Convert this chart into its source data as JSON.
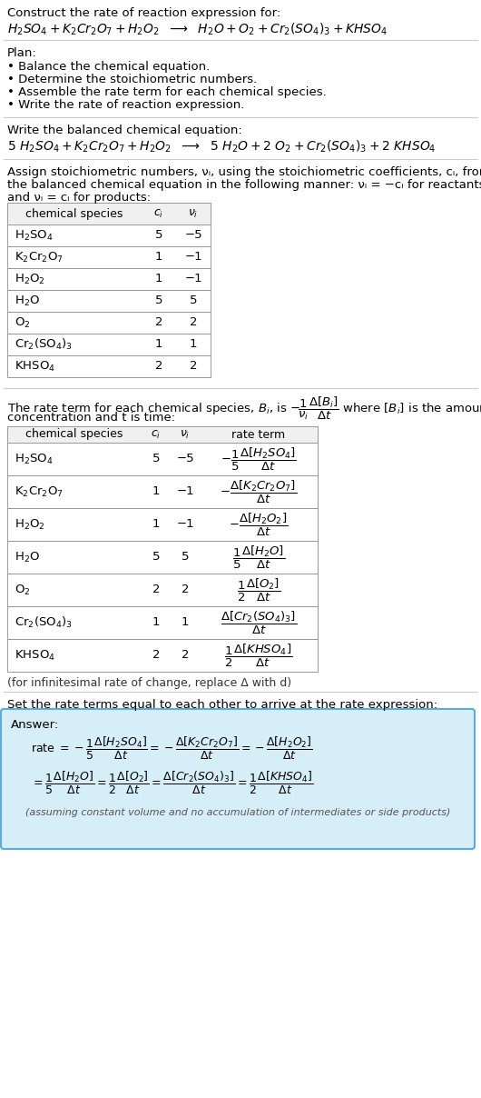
{
  "title_line1": "Construct the rate of reaction expression for:",
  "plan_header": "Plan:",
  "plan_items": [
    "• Balance the chemical equation.",
    "• Determine the stoichiometric numbers.",
    "• Assemble the rate term for each chemical species.",
    "• Write the rate of reaction expression."
  ],
  "balanced_header": "Write the balanced chemical equation:",
  "assign_text1": "Assign stoichiometric numbers, νᵢ, using the stoichiometric coefficients, cᵢ, from",
  "assign_text2": "the balanced chemical equation in the following manner: νᵢ = −cᵢ for reactants",
  "assign_text3": "and νᵢ = cᵢ for products:",
  "table1_headers": [
    "chemical species",
    "cᵢ",
    "νᵢ"
  ],
  "table1_rows": [
    [
      "H_2SO_4",
      "5",
      "−5"
    ],
    [
      "K_2Cr_2O_7",
      "1",
      "−1"
    ],
    [
      "H_2O_2",
      "1",
      "−1"
    ],
    [
      "H_2O",
      "5",
      "5"
    ],
    [
      "O_2",
      "2",
      "2"
    ],
    [
      "Cr_2(SO_4)_3",
      "1",
      "1"
    ],
    [
      "KHSO_4",
      "2",
      "2"
    ]
  ],
  "table2_headers": [
    "chemical species",
    "cᵢ",
    "νᵢ",
    "rate term"
  ],
  "table2_rows": [
    [
      "H_2SO_4",
      "5",
      "−5"
    ],
    [
      "K_2Cr_2O_7",
      "1",
      "−1"
    ],
    [
      "H_2O_2",
      "1",
      "−1"
    ],
    [
      "H_2O",
      "5",
      "5"
    ],
    [
      "O_2",
      "2",
      "2"
    ],
    [
      "Cr_2(SO_4)_3",
      "1",
      "1"
    ],
    [
      "KHSO_4",
      "2",
      "2"
    ]
  ],
  "infinitesimal_note": "(for infinitesimal rate of change, replace Δ with d)",
  "set_rate_text": "Set the rate terms equal to each other to arrive at the rate expression:",
  "answer_box_color": "#d6eef8",
  "answer_border_color": "#5aacda",
  "answer_note": "(assuming constant volume and no accumulation of intermediates or side products)",
  "bg_color": "#ffffff",
  "font_size": 9.5
}
